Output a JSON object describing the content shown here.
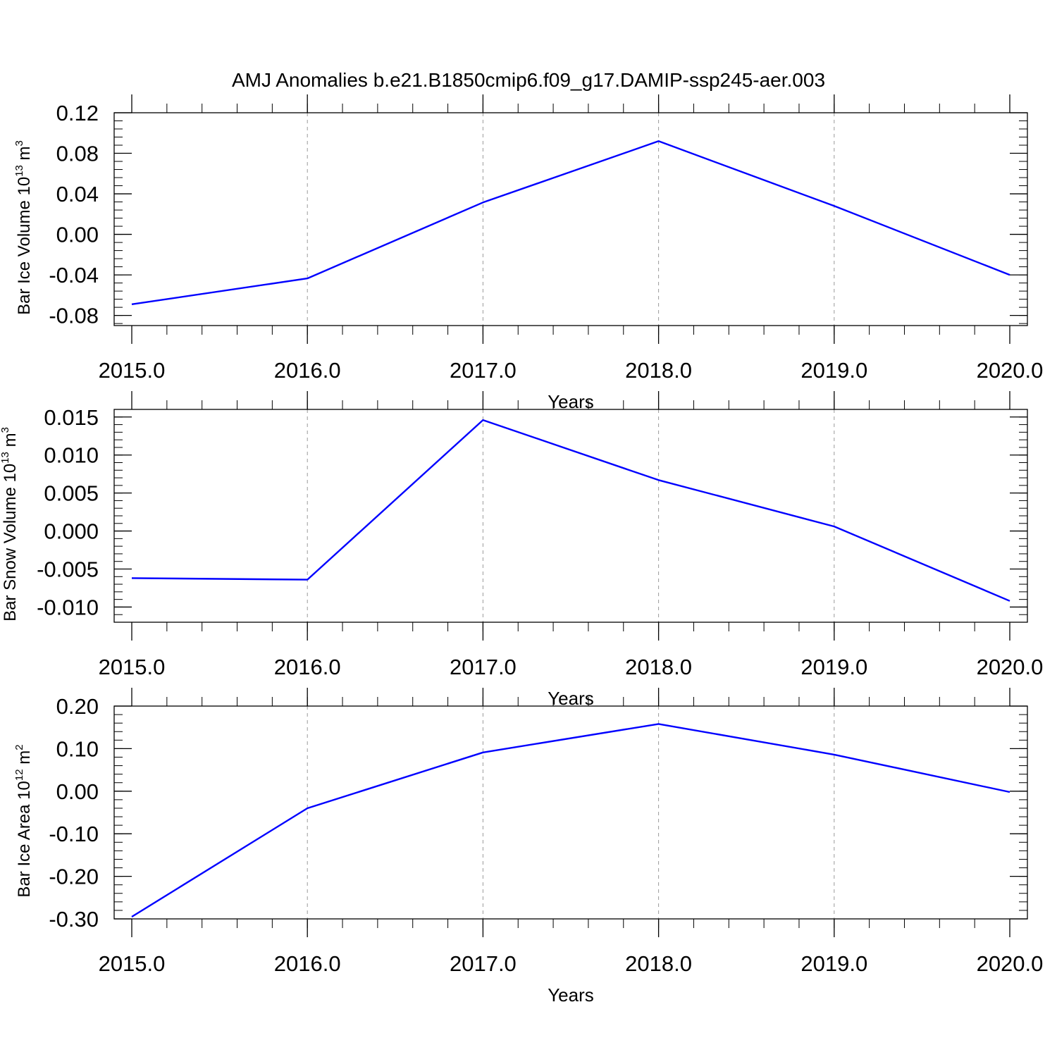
{
  "title": "AMJ Anomalies b.e21.B1850cmip6.f09_g17.DAMIP-ssp245-aer.003",
  "colors": {
    "line": "#0000ff",
    "axis": "#000000",
    "grid": "#9a9a9a"
  },
  "chart_data": [
    {
      "type": "line",
      "ylabel_main": "Bar Ice Volume 10",
      "ylabel_exp": "13",
      "ylabel_tail": " m",
      "ylabel_exp2": "3",
      "xlabel": "Years",
      "xlim": [
        2015,
        2020
      ],
      "ylim": [
        -0.09,
        0.12
      ],
      "xticks": [
        "2015.0",
        "2016.0",
        "2017.0",
        "2018.0",
        "2019.0",
        "2020.0"
      ],
      "yticks": [
        "0.12",
        "0.08",
        "0.04",
        "0.00",
        "-0.04",
        "-0.08"
      ],
      "x": [
        2015,
        2016,
        2017,
        2018,
        2019,
        2020
      ],
      "y": [
        -0.069,
        -0.0435,
        0.0315,
        0.092,
        0.028,
        -0.04
      ],
      "grid": "vertical dashed at major x ticks"
    },
    {
      "type": "line",
      "ylabel_main": "Bar Snow Volume 10",
      "ylabel_exp": "13",
      "ylabel_tail": " m",
      "ylabel_exp2": "3",
      "xlabel": "Years",
      "xlim": [
        2015,
        2020
      ],
      "ylim": [
        -0.012,
        0.016
      ],
      "xticks": [
        "2015.0",
        "2016.0",
        "2017.0",
        "2018.0",
        "2019.0",
        "2020.0"
      ],
      "yticks": [
        "0.015",
        "0.010",
        "0.005",
        "0.000",
        "-0.005",
        "-0.010"
      ],
      "x": [
        2015,
        2016,
        2017,
        2018,
        2019,
        2020
      ],
      "y": [
        -0.0062,
        -0.0064,
        0.0146,
        0.0067,
        0.0006,
        -0.0092
      ],
      "grid": "vertical dashed at major x ticks"
    },
    {
      "type": "line",
      "ylabel_main": "Bar Ice Area 10",
      "ylabel_exp": "12",
      "ylabel_tail": " m",
      "ylabel_exp2": "2",
      "xlabel": "Years",
      "xlim": [
        2015,
        2020
      ],
      "ylim": [
        -0.3,
        0.2
      ],
      "xticks": [
        "2015.0",
        "2016.0",
        "2017.0",
        "2018.0",
        "2019.0",
        "2020.0"
      ],
      "yticks": [
        "0.20",
        "0.10",
        "0.00",
        "-0.10",
        "-0.20",
        "-0.30"
      ],
      "x": [
        2015,
        2016,
        2017,
        2018,
        2019,
        2020
      ],
      "y": [
        -0.295,
        -0.04,
        0.091,
        0.158,
        0.086,
        -0.002
      ],
      "grid": "vertical dashed at major x ticks"
    }
  ]
}
